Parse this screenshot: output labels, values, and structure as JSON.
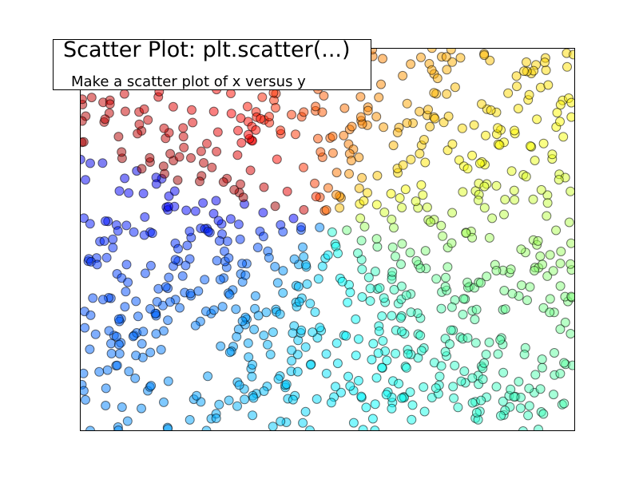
{
  "chart_data": {
    "type": "scatter",
    "title": "Scatter Plot:  plt.scatter(...)",
    "subtitle": "Make a scatter plot of x versus y",
    "xlim": [
      0,
      1
    ],
    "ylim": [
      0,
      1
    ],
    "grid": false,
    "xticks": [],
    "yticks": [],
    "colormap": "jet",
    "color_encoding": "hue by angle around the plot center",
    "marker": "circle",
    "marker_alpha": 0.5,
    "marker_edge_color": "#000000",
    "n_points": 900,
    "series": [
      {
        "x": [
          0.01,
          0.05,
          0.09,
          0.13,
          0.17,
          0.21,
          0.25,
          0.29,
          0.33,
          0.37,
          0.41,
          0.45,
          0.49,
          0.53,
          0.57,
          0.61,
          0.65,
          0.69,
          0.73,
          0.77,
          0.81,
          0.85,
          0.89,
          0.93,
          0.97
        ],
        "y": [
          0.97,
          0.93,
          0.88,
          0.84,
          0.79,
          0.74,
          0.7,
          0.65,
          0.61,
          0.57,
          0.52,
          0.48,
          0.43,
          0.39,
          0.35,
          0.3,
          0.26,
          0.21,
          0.17,
          0.13,
          0.08,
          0.04,
          0.06,
          0.11,
          0.15
        ]
      }
    ]
  }
}
